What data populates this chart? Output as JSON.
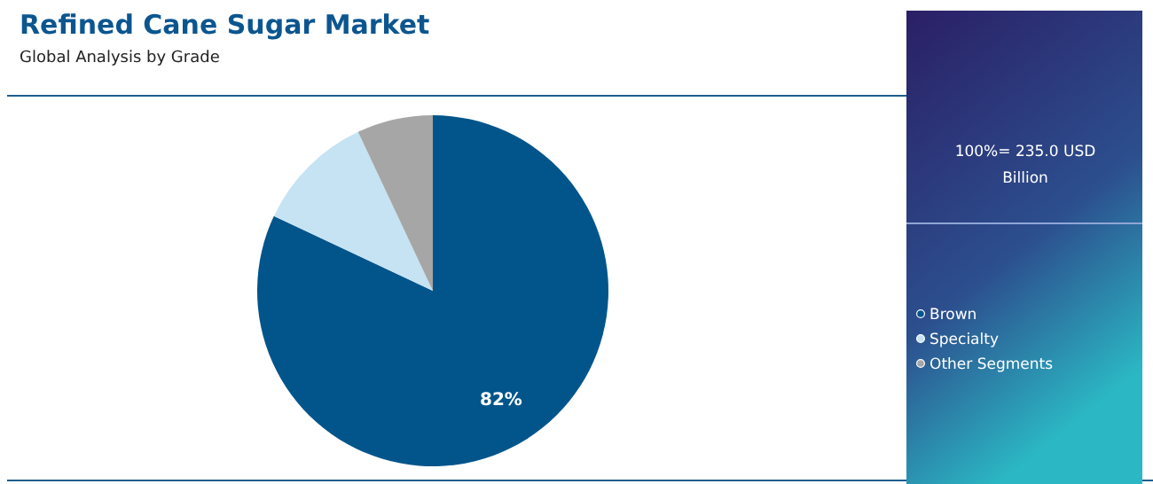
{
  "chart_data": {
    "type": "pie",
    "title": "Refined Cane Sugar Market",
    "subtitle": "Global Analysis by Grade",
    "categories": [
      "Brown",
      "Specialty",
      "Other Segments"
    ],
    "values": [
      82,
      11,
      7
    ],
    "colors": [
      "#02558b",
      "#c5e3f3",
      "#a6a6a6"
    ],
    "value_labels": [
      "82%",
      null,
      null
    ],
    "legend": "right",
    "annotations": [
      "100%= 235.0 USD Billion"
    ]
  }
}
